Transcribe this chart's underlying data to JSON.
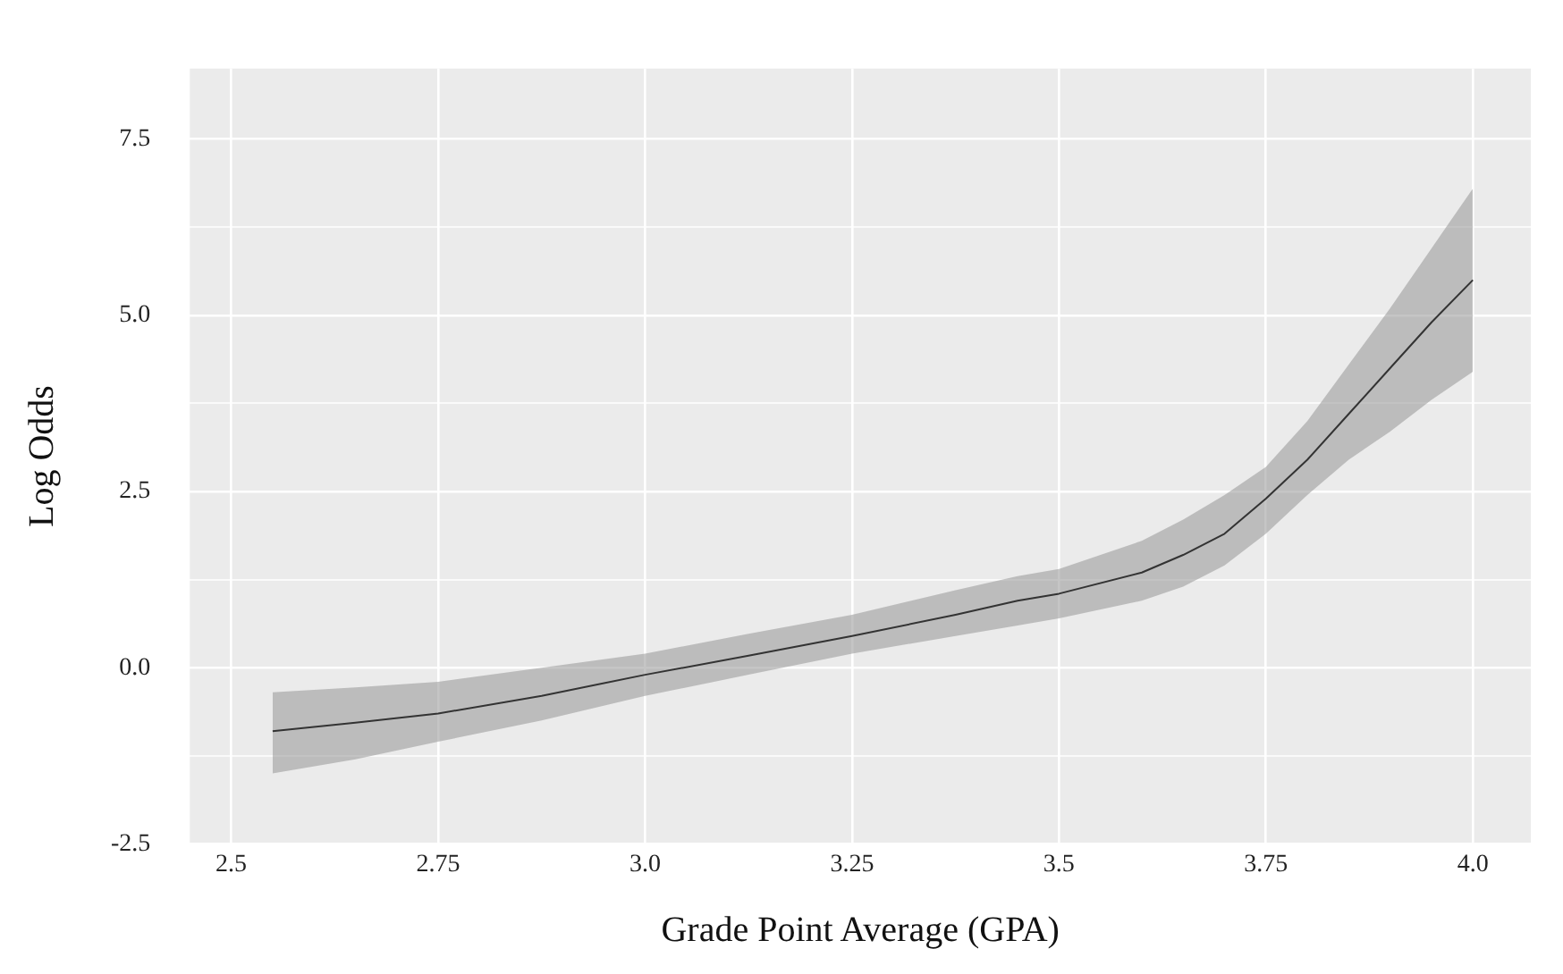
{
  "chart_data": {
    "type": "line",
    "xlabel": "Grade Point Average (GPA)",
    "ylabel": "Log Odds",
    "x": [
      2.55,
      2.65,
      2.75,
      2.875,
      3.0,
      3.125,
      3.25,
      3.375,
      3.45,
      3.5,
      3.6,
      3.65,
      3.7,
      3.75,
      3.8,
      3.85,
      3.9,
      3.95,
      4.0
    ],
    "series": [
      {
        "color": "#333333",
        "values": [
          -0.9,
          -0.78,
          -0.65,
          -0.4,
          -0.1,
          0.17,
          0.45,
          0.75,
          0.95,
          1.05,
          1.35,
          1.6,
          1.9,
          2.4,
          2.95,
          3.6,
          4.25,
          4.9,
          5.5
        ],
        "upper": [
          -0.35,
          -0.28,
          -0.2,
          0.0,
          0.2,
          0.48,
          0.75,
          1.1,
          1.3,
          1.4,
          1.8,
          2.1,
          2.45,
          2.85,
          3.5,
          4.3,
          5.1,
          5.95,
          6.8
        ],
        "lower": [
          -1.5,
          -1.3,
          -1.05,
          -0.75,
          -0.4,
          -0.1,
          0.2,
          0.45,
          0.6,
          0.7,
          0.95,
          1.15,
          1.45,
          1.9,
          2.45,
          2.95,
          3.35,
          3.8,
          4.2
        ]
      }
    ],
    "xlim": [
      2.45,
      4.07
    ],
    "xticks": [
      2.5,
      2.75,
      {
        "value": 3,
        "label": "3.0"
      },
      3.25,
      3.5,
      3.75,
      {
        "value": 4,
        "label": "4.0"
      }
    ],
    "ylim": [
      -2.5,
      8.5
    ],
    "yticks": [
      -2.5,
      {
        "value": -1.25,
        "label": null
      },
      {
        "value": 0,
        "label": "0.0"
      },
      {
        "value": 1.25,
        "label": null
      },
      2.5,
      {
        "value": 3.75,
        "label": null
      },
      {
        "value": 5,
        "label": "5.0"
      },
      {
        "value": 6.25,
        "label": null
      },
      7.5
    ],
    "grid": true,
    "marker": "none",
    "line_style": "solid",
    "legend": false
  }
}
